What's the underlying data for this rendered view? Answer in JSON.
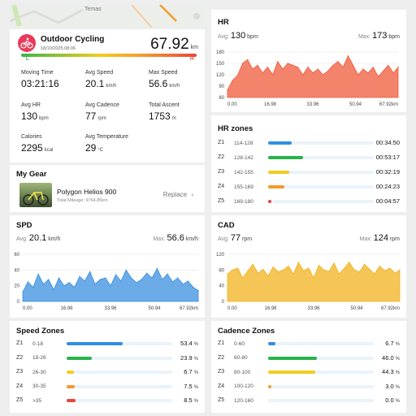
{
  "map": {
    "label": "Temas"
  },
  "activity": {
    "title": "Outdoor Cycling",
    "date": "18/10/2025,08:06",
    "distance": "67.92",
    "distance_unit": "km",
    "scale_left": "L",
    "scale_right": "H"
  },
  "stats": [
    {
      "label": "Moving Time",
      "value": "03:21:16",
      "unit": ""
    },
    {
      "label": "Avg Speed",
      "value": "20.1",
      "unit": "km/h"
    },
    {
      "label": "Max Speed",
      "value": "56.6",
      "unit": "km/h"
    },
    {
      "label": "Avg HR",
      "value": "130",
      "unit": "bpm"
    },
    {
      "label": "Avg Cadence",
      "value": "77",
      "unit": "rpm"
    },
    {
      "label": "Total Ascent",
      "value": "1753",
      "unit": "m"
    },
    {
      "label": "Calories",
      "value": "2295",
      "unit": "kcal"
    },
    {
      "label": "Avg Temperature",
      "value": "29",
      "unit": "°C"
    }
  ],
  "gear": {
    "title": "My Gear",
    "name": "Polygon Helios 900",
    "mileage": "Total Mileage: 9764.85km",
    "replace_label": "Replace"
  },
  "hr": {
    "title": "HR",
    "avg_label": "Avg:",
    "avg_value": "130",
    "avg_unit": "bpm",
    "max_label": "Max:",
    "max_value": "173",
    "max_unit": "bpm"
  },
  "hr_zones": {
    "title": "HR zones",
    "zones": [
      {
        "name": "Z1",
        "range": "114-128",
        "value": "00:34:50",
        "fraction": 0.22,
        "color": "#2f8fe3"
      },
      {
        "name": "Z2",
        "range": "128-142",
        "value": "00:53:17",
        "fraction": 0.33,
        "color": "#29b34a"
      },
      {
        "name": "Z3",
        "range": "142-155",
        "value": "00:32:19",
        "fraction": 0.2,
        "color": "#f2cc1f"
      },
      {
        "name": "Z4",
        "range": "155-169",
        "value": "00:24:23",
        "fraction": 0.15,
        "color": "#f39a2c"
      },
      {
        "name": "Z5",
        "range": "169-180",
        "value": "00:04:57",
        "fraction": 0.03,
        "color": "#e8463d"
      }
    ]
  },
  "spd": {
    "title": "SPD",
    "avg_label": "Avg:",
    "avg_value": "20.1",
    "avg_unit": "km/h",
    "max_label": "Max:",
    "max_value": "56.6",
    "max_unit": "km/h"
  },
  "cad": {
    "title": "CAD",
    "avg_label": "Avg:",
    "avg_value": "77",
    "avg_unit": "rpm",
    "max_label": "Max:",
    "max_value": "124",
    "max_unit": "rpm"
  },
  "speed_zones": {
    "title": "Speed Zones",
    "zones": [
      {
        "name": "Z1",
        "range": "0-18",
        "value": "53.4",
        "unit": "%",
        "fraction": 0.534,
        "color": "#2f8fe3"
      },
      {
        "name": "Z2",
        "range": "18-26",
        "value": "23.9",
        "unit": "%",
        "fraction": 0.239,
        "color": "#29b34a"
      },
      {
        "name": "Z3",
        "range": "26-30",
        "value": "6.7",
        "unit": "%",
        "fraction": 0.067,
        "color": "#f2cc1f"
      },
      {
        "name": "Z4",
        "range": "30-35",
        "value": "7.5",
        "unit": "%",
        "fraction": 0.075,
        "color": "#f39a2c"
      },
      {
        "name": "Z5",
        "range": ">35",
        "value": "8.5",
        "unit": "%",
        "fraction": 0.085,
        "color": "#e8463d"
      }
    ]
  },
  "cadence_zones": {
    "title": "Cadence Zones",
    "zones": [
      {
        "name": "Z1",
        "range": "0-60",
        "value": "6.7",
        "unit": "%",
        "fraction": 0.067,
        "color": "#2f8fe3"
      },
      {
        "name": "Z2",
        "range": "60-80",
        "value": "46.0",
        "unit": "%",
        "fraction": 0.46,
        "color": "#29b34a"
      },
      {
        "name": "Z3",
        "range": "80-100",
        "value": "44.3",
        "unit": "%",
        "fraction": 0.443,
        "color": "#f2cc1f"
      },
      {
        "name": "Z4",
        "range": "100-120",
        "value": "3.0",
        "unit": "%",
        "fraction": 0.03,
        "color": "#f39a2c"
      },
      {
        "name": "Z5",
        "range": "120-160",
        "value": "0.0",
        "unit": "%",
        "fraction": 0.0,
        "color": "#e8463d"
      }
    ]
  },
  "chart_data": [
    {
      "type": "area",
      "name": "hr",
      "color": "#ef5a3a",
      "x_ticks": [
        "0.00",
        "16.98",
        "33.96",
        "50.94",
        "67.92km"
      ],
      "xlim": [
        0,
        67.92
      ],
      "ylim": [
        60,
        180
      ],
      "y_ticks": [
        60,
        90,
        120,
        150,
        180
      ],
      "x": [
        0,
        2,
        4,
        6,
        8,
        10,
        12,
        14,
        16,
        18,
        20,
        22,
        24,
        26,
        28,
        30,
        32,
        34,
        36,
        38,
        40,
        42,
        44,
        46,
        48,
        50,
        52,
        54,
        56,
        58,
        60,
        62,
        64,
        66,
        67.92
      ],
      "values": [
        80,
        105,
        118,
        150,
        160,
        135,
        145,
        125,
        140,
        120,
        155,
        135,
        150,
        145,
        140,
        120,
        140,
        125,
        135,
        120,
        130,
        145,
        155,
        140,
        170,
        145,
        120,
        135,
        125,
        140,
        115,
        130,
        145,
        125,
        140
      ]
    },
    {
      "type": "area",
      "name": "spd",
      "color": "#3a8fe0",
      "x_ticks": [
        "0.00",
        "16.98",
        "33.96",
        "50.94",
        "67.92km"
      ],
      "xlim": [
        0,
        67.92
      ],
      "ylim": [
        0,
        60
      ],
      "y_ticks": [
        0,
        20,
        40,
        60
      ],
      "x": [
        0,
        2,
        4,
        6,
        8,
        10,
        12,
        14,
        16,
        18,
        20,
        22,
        24,
        26,
        28,
        30,
        32,
        34,
        36,
        38,
        40,
        42,
        44,
        46,
        48,
        50,
        52,
        54,
        56,
        58,
        60,
        62,
        64,
        66,
        67.92
      ],
      "values": [
        12,
        25,
        18,
        35,
        22,
        28,
        15,
        30,
        20,
        24,
        18,
        32,
        26,
        38,
        22,
        28,
        30,
        20,
        34,
        26,
        40,
        30,
        24,
        28,
        36,
        30,
        42,
        28,
        35,
        25,
        30,
        22,
        26,
        18,
        14
      ]
    },
    {
      "type": "area",
      "name": "cad",
      "color": "#f2b21e",
      "x_ticks": [
        "0.00",
        "16.98",
        "33.96",
        "50.94",
        "67.92km"
      ],
      "xlim": [
        0,
        67.92
      ],
      "ylim": [
        0,
        120
      ],
      "y_ticks": [
        0,
        40,
        80,
        120
      ],
      "x": [
        0,
        2,
        4,
        6,
        8,
        10,
        12,
        14,
        16,
        18,
        20,
        22,
        24,
        26,
        28,
        30,
        32,
        34,
        36,
        38,
        40,
        42,
        44,
        46,
        48,
        50,
        52,
        54,
        56,
        58,
        60,
        62,
        64,
        66,
        67.92
      ],
      "values": [
        70,
        80,
        85,
        60,
        78,
        95,
        72,
        82,
        65,
        88,
        75,
        80,
        90,
        70,
        100,
        78,
        85,
        60,
        92,
        80,
        76,
        98,
        70,
        84,
        100,
        80,
        75,
        95,
        82,
        70,
        90,
        78,
        85,
        72,
        80
      ]
    }
  ]
}
